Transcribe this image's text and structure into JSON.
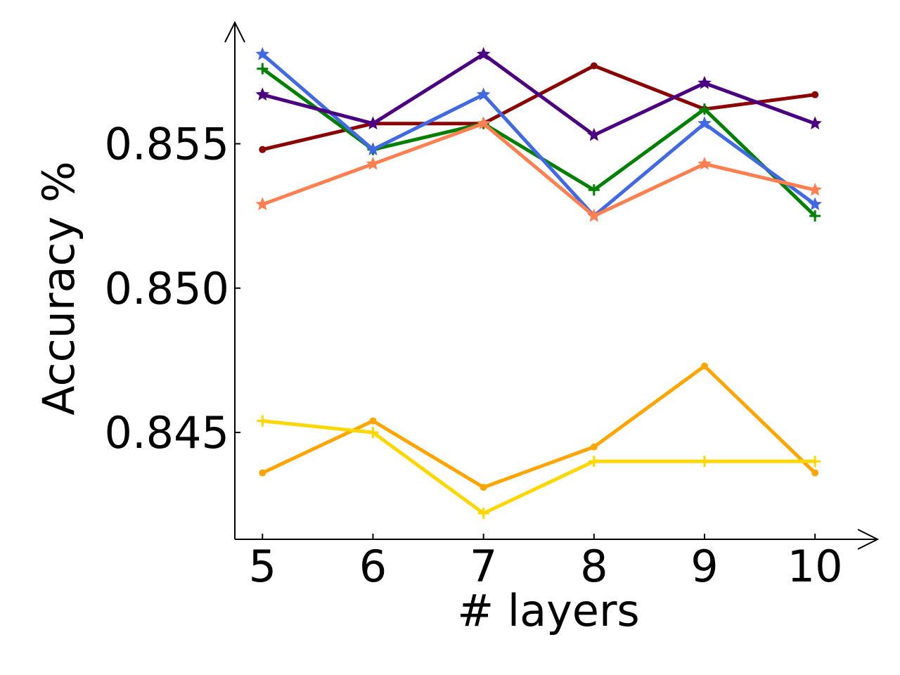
{
  "chart_data": {
    "type": "line",
    "xlabel": "# layers",
    "ylabel": "Accuracy %",
    "x": [
      5,
      6,
      7,
      8,
      9,
      10
    ],
    "x_tick_labels": [
      "5",
      "6",
      "7",
      "8",
      "9",
      "10"
    ],
    "y_ticks": [
      0.845,
      0.85,
      0.855
    ],
    "y_tick_labels": [
      "0.845",
      "0.850",
      "0.855"
    ],
    "xlim": [
      4.75,
      10.4
    ],
    "ylim": [
      0.8413,
      0.8592
    ],
    "grid": false,
    "legend": "none",
    "series": [
      {
        "color": "#8b0000",
        "marker": "dot",
        "values": [
          0.8548,
          0.8557,
          0.8557,
          0.8577,
          0.8562,
          0.8567
        ]
      },
      {
        "color": "#008000",
        "marker": "plus",
        "values": [
          0.8576,
          0.8548,
          0.8557,
          0.8534,
          0.8562,
          0.8525
        ]
      },
      {
        "color": "#4169e1",
        "marker": "star",
        "values": [
          0.8581,
          0.8548,
          0.8567,
          0.8525,
          0.8557,
          0.8529
        ]
      },
      {
        "color": "#4b0082",
        "marker": "star",
        "values": [
          0.8567,
          0.8557,
          0.8581,
          0.8553,
          0.8571,
          0.8557
        ]
      },
      {
        "color": "#ff7f50",
        "marker": "star",
        "values": [
          0.8529,
          0.8543,
          0.8557,
          0.8525,
          0.8543,
          0.8534
        ]
      },
      {
        "color": "#ffa500",
        "marker": "dot",
        "values": [
          0.8436,
          0.8454,
          0.8431,
          0.8445,
          0.8473,
          0.8436
        ]
      },
      {
        "color": "#ffd700",
        "marker": "plus",
        "values": [
          0.8454,
          0.845,
          0.8422,
          0.844,
          0.844,
          0.844
        ]
      }
    ]
  }
}
